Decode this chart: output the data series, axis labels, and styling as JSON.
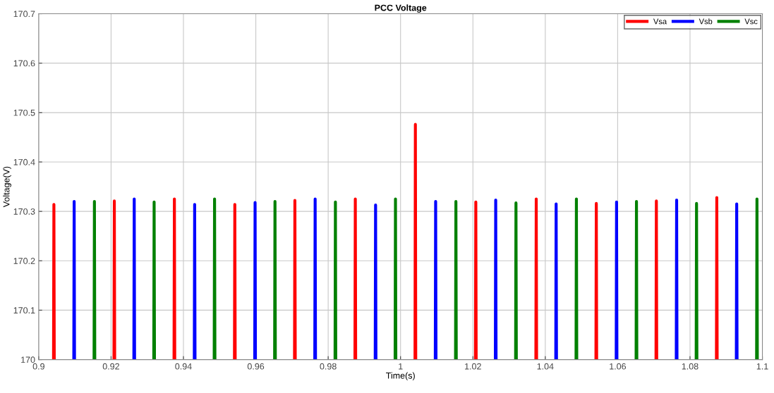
{
  "chart_data": {
    "type": "line",
    "title": "PCC Voltage",
    "xlabel": "Time(s)",
    "ylabel": "Voltage(V)",
    "xlim": [
      0.9,
      1.1
    ],
    "ylim": [
      170,
      170.7
    ],
    "xticks": [
      0.9,
      0.92,
      0.94,
      0.96,
      0.98,
      1,
      1.02,
      1.04,
      1.06,
      1.08,
      1.1
    ],
    "yticks": [
      170,
      170.1,
      170.2,
      170.3,
      170.4,
      170.5,
      170.6,
      170.7
    ],
    "grid": true,
    "legend": "top right",
    "line_style": "solid",
    "marker": "none",
    "series": [
      {
        "name": "Vsa",
        "color": "#ff0000",
        "x": [
          0.9041,
          0.9042,
          0.9043,
          0.9044,
          0.9208,
          0.9209,
          0.921,
          0.9211,
          0.9374,
          0.9375,
          0.9376,
          0.9377,
          0.9541,
          0.9542,
          0.9543,
          0.9544,
          0.9707,
          0.9708,
          0.9709,
          0.971,
          0.9874,
          0.9875,
          0.9876,
          0.9877,
          1.004,
          1.0041,
          1.0042,
          1.0043,
          1.0207,
          1.0208,
          1.0209,
          1.021,
          1.0374,
          1.0375,
          1.0376,
          1.0377,
          1.054,
          1.0541,
          1.0542,
          1.0543,
          1.0706,
          1.0707,
          1.0708,
          1.0709,
          1.0873,
          1.0874,
          1.0875
        ],
        "values": [
          170,
          170.314,
          170,
          null,
          170,
          170.321,
          170,
          null,
          170,
          170.325,
          170,
          null,
          170,
          170.314,
          170,
          null,
          170,
          170.322,
          170,
          null,
          170,
          170.325,
          170,
          null,
          170,
          170.476,
          170,
          null,
          170,
          170.319,
          170,
          null,
          170,
          170.325,
          170,
          null,
          170,
          170.316,
          170,
          null,
          170,
          170.321,
          170,
          null,
          170,
          170.328,
          170
        ]
      },
      {
        "name": "Vsb",
        "color": "#0000ff",
        "x": [
          0.9097,
          0.9098,
          0.9099,
          0.91,
          0.9263,
          0.9264,
          0.9265,
          0.9266,
          0.943,
          0.9431,
          0.9432,
          0.9433,
          0.9597,
          0.9598,
          0.9599,
          0.96,
          0.9763,
          0.9764,
          0.9765,
          0.9766,
          0.993,
          0.9931,
          0.9932,
          0.9933,
          1.0096,
          1.0097,
          1.0098,
          1.0099,
          1.0262,
          1.0263,
          1.0264,
          1.0265,
          1.0429,
          1.043,
          1.0431,
          1.0432,
          1.0596,
          1.0597,
          1.0598,
          1.0599,
          1.0762,
          1.0763,
          1.0764,
          1.0765,
          1.0928,
          1.0929,
          1.093
        ],
        "values": [
          170,
          170.32,
          170,
          null,
          170,
          170.325,
          170,
          null,
          170,
          170.314,
          170,
          null,
          170,
          170.318,
          170,
          null,
          170,
          170.325,
          170,
          null,
          170,
          170.313,
          170,
          null,
          170,
          170.32,
          170,
          null,
          170,
          170.323,
          170,
          null,
          170,
          170.315,
          170,
          null,
          170,
          170.319,
          170,
          null,
          170,
          170.323,
          170,
          null,
          170,
          170.315,
          170
        ]
      },
      {
        "name": "Vsc",
        "color": "#008000",
        "x": [
          0.9153,
          0.9154,
          0.9155,
          0.9156,
          0.9318,
          0.9319,
          0.932,
          0.9321,
          0.9485,
          0.9486,
          0.9487,
          0.9488,
          0.9652,
          0.9653,
          0.9654,
          0.9655,
          0.9819,
          0.982,
          0.9821,
          0.9822,
          0.9985,
          0.9986,
          0.9987,
          0.9988,
          1.0152,
          1.0153,
          1.0154,
          1.0155,
          1.0318,
          1.0319,
          1.032,
          1.0321,
          1.0485,
          1.0486,
          1.0487,
          1.0488,
          1.0651,
          1.0652,
          1.0653,
          1.0654,
          1.0817,
          1.0818,
          1.0819,
          1.082,
          1.0984,
          1.0985,
          1.0986
        ],
        "values": [
          170,
          170.32,
          170,
          null,
          170,
          170.319,
          170,
          null,
          170,
          170.325,
          170,
          null,
          170,
          170.32,
          170,
          null,
          170,
          170.319,
          170,
          null,
          170,
          170.325,
          170,
          null,
          170,
          170.32,
          170,
          null,
          170,
          170.317,
          170,
          null,
          170,
          170.325,
          170,
          null,
          170,
          170.32,
          170,
          null,
          170,
          170.316,
          170,
          null,
          170,
          170.325,
          170
        ]
      }
    ]
  }
}
